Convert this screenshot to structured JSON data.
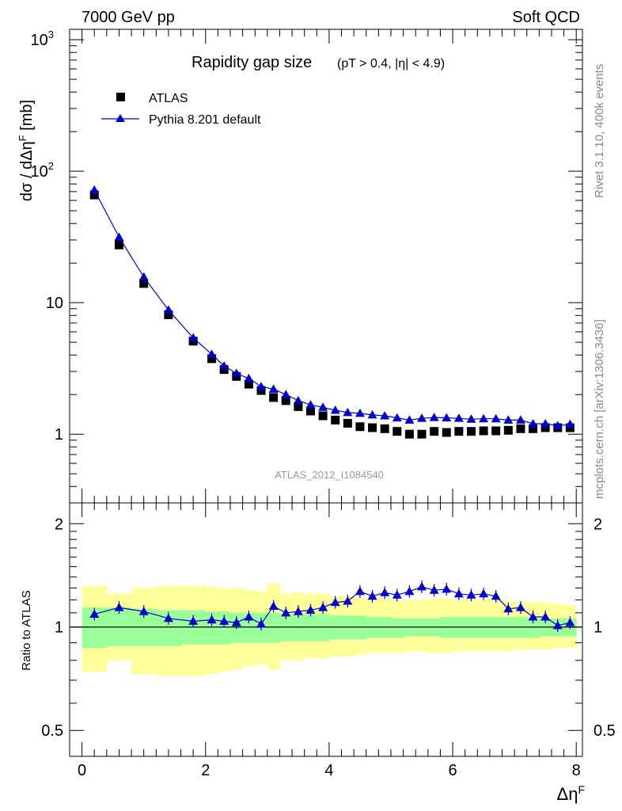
{
  "header": {
    "left": "7000 GeV pp",
    "right": "Soft QCD"
  },
  "side_labels": {
    "rivet": "Rivet 3.1.10,  400k events",
    "mcplots": "mcplots.cern.ch [arXiv:1306.3436]"
  },
  "chart_data": [
    {
      "type": "scatter",
      "title": "Rapidity gap size",
      "subtitle": "(pT > 0.4, |η| < 4.9)",
      "watermark": "ATLAS_2012_I1084540",
      "ylabel": "dσ / dΔη^F [mb]",
      "yscale": "log",
      "ylim": [
        0.3,
        1200
      ],
      "xlim": [
        -0.2,
        8.1
      ],
      "y_tick_labels": [
        "1",
        "10",
        "10^2",
        "10^3"
      ],
      "legend_position": "top-left",
      "series": [
        {
          "name": "ATLAS",
          "marker": "square",
          "color": "#000000",
          "x": [
            0.2,
            0.6,
            1.0,
            1.4,
            1.8,
            2.1,
            2.3,
            2.5,
            2.7,
            2.9,
            3.1,
            3.3,
            3.5,
            3.7,
            3.9,
            4.1,
            4.3,
            4.5,
            4.7,
            4.9,
            5.1,
            5.3,
            5.5,
            5.7,
            5.9,
            6.1,
            6.3,
            6.5,
            6.7,
            6.9,
            7.1,
            7.3,
            7.5,
            7.7,
            7.9
          ],
          "y": [
            66,
            27.5,
            14,
            8.1,
            5.1,
            3.75,
            3.1,
            2.75,
            2.4,
            2.15,
            1.9,
            1.8,
            1.62,
            1.5,
            1.38,
            1.28,
            1.21,
            1.14,
            1.12,
            1.1,
            1.05,
            1.0,
            1.0,
            1.05,
            1.03,
            1.05,
            1.05,
            1.06,
            1.06,
            1.07,
            1.1,
            1.1,
            1.12,
            1.12,
            1.12
          ]
        },
        {
          "name": "Pythia 8.201 default",
          "marker": "triangle",
          "color": "#0000cc",
          "x": [
            0.2,
            0.6,
            1.0,
            1.4,
            1.8,
            2.1,
            2.3,
            2.5,
            2.7,
            2.9,
            3.1,
            3.3,
            3.5,
            3.7,
            3.9,
            4.1,
            4.3,
            4.5,
            4.7,
            4.9,
            5.1,
            5.3,
            5.5,
            5.7,
            5.9,
            6.1,
            6.3,
            6.5,
            6.7,
            6.9,
            7.1,
            7.3,
            7.5,
            7.7,
            7.9
          ],
          "y": [
            72,
            31.5,
            15.7,
            8.8,
            5.4,
            4.05,
            3.3,
            2.9,
            2.65,
            2.3,
            2.2,
            2.0,
            1.8,
            1.67,
            1.6,
            1.52,
            1.46,
            1.44,
            1.4,
            1.38,
            1.33,
            1.28,
            1.32,
            1.34,
            1.33,
            1.32,
            1.3,
            1.31,
            1.31,
            1.28,
            1.28,
            1.2,
            1.2,
            1.16,
            1.19
          ]
        }
      ]
    },
    {
      "type": "scatter",
      "ylabel": "Ratio to ATLAS",
      "xlabel": "Δη^F",
      "yscale": "log",
      "ylim": [
        0.42,
        2.3
      ],
      "xlim": [
        -0.2,
        8.1
      ],
      "x_tick_labels": [
        "0",
        "2",
        "4",
        "6",
        "8"
      ],
      "y_tick_labels": [
        "0.5",
        "1",
        "2"
      ],
      "bands": {
        "x_edges": [
          0.0,
          0.4,
          0.8,
          1.2,
          1.6,
          2.0,
          2.2,
          2.4,
          2.6,
          2.8,
          3.0,
          3.2,
          3.4,
          3.6,
          3.8,
          4.0,
          4.2,
          4.4,
          4.6,
          4.8,
          5.0,
          5.2,
          5.4,
          5.6,
          5.8,
          6.0,
          6.2,
          6.4,
          6.6,
          6.8,
          7.0,
          7.2,
          7.4,
          7.6,
          7.8,
          8.0
        ],
        "stat_color": "#99ff99",
        "syst_color": "#ffff99",
        "inner_up": [
          1.14,
          1.14,
          1.13,
          1.12,
          1.12,
          1.11,
          1.11,
          1.1,
          1.1,
          1.1,
          1.1,
          1.09,
          1.09,
          1.09,
          1.09,
          1.08,
          1.08,
          1.08,
          1.07,
          1.07,
          1.06,
          1.06,
          1.06,
          1.06,
          1.07,
          1.07,
          1.07,
          1.07,
          1.07,
          1.07,
          1.07,
          1.06,
          1.06,
          1.06,
          1.06
        ],
        "inner_lo": [
          0.87,
          0.88,
          0.88,
          0.88,
          0.89,
          0.89,
          0.89,
          0.9,
          0.9,
          0.9,
          0.9,
          0.91,
          0.91,
          0.91,
          0.91,
          0.92,
          0.92,
          0.92,
          0.93,
          0.93,
          0.93,
          0.94,
          0.94,
          0.94,
          0.93,
          0.93,
          0.93,
          0.93,
          0.93,
          0.93,
          0.93,
          0.93,
          0.94,
          0.94,
          0.94
        ],
        "outer_up": [
          1.32,
          1.25,
          1.3,
          1.32,
          1.32,
          1.31,
          1.3,
          1.3,
          1.28,
          1.27,
          1.34,
          1.25,
          1.26,
          1.25,
          1.25,
          1.23,
          1.23,
          1.22,
          1.21,
          1.22,
          1.2,
          1.2,
          1.2,
          1.21,
          1.21,
          1.2,
          1.2,
          1.2,
          1.2,
          1.19,
          1.18,
          1.18,
          1.18,
          1.17,
          1.16
        ],
        "outer_lo": [
          0.74,
          0.8,
          0.73,
          0.72,
          0.72,
          0.73,
          0.74,
          0.75,
          0.77,
          0.78,
          0.75,
          0.8,
          0.8,
          0.81,
          0.81,
          0.82,
          0.82,
          0.83,
          0.84,
          0.84,
          0.84,
          0.85,
          0.85,
          0.84,
          0.84,
          0.85,
          0.85,
          0.85,
          0.85,
          0.85,
          0.86,
          0.86,
          0.86,
          0.87,
          0.87
        ]
      },
      "reference_line": 1,
      "series": [
        {
          "name": "Pythia 8.201 default",
          "marker": "triangle",
          "color": "#0000cc",
          "x": [
            0.2,
            0.6,
            1.0,
            1.4,
            1.8,
            2.1,
            2.3,
            2.5,
            2.7,
            2.9,
            3.1,
            3.3,
            3.5,
            3.7,
            3.9,
            4.1,
            4.3,
            4.5,
            4.7,
            4.9,
            5.1,
            5.3,
            5.5,
            5.7,
            5.9,
            6.1,
            6.3,
            6.5,
            6.7,
            6.9,
            7.1,
            7.3,
            7.5,
            7.7,
            7.9
          ],
          "y": [
            1.09,
            1.14,
            1.11,
            1.06,
            1.04,
            1.05,
            1.04,
            1.03,
            1.07,
            1.02,
            1.15,
            1.1,
            1.11,
            1.12,
            1.14,
            1.18,
            1.19,
            1.27,
            1.23,
            1.26,
            1.24,
            1.27,
            1.31,
            1.28,
            1.29,
            1.25,
            1.24,
            1.25,
            1.23,
            1.13,
            1.14,
            1.07,
            1.07,
            1.01,
            1.03
          ]
        }
      ]
    }
  ]
}
